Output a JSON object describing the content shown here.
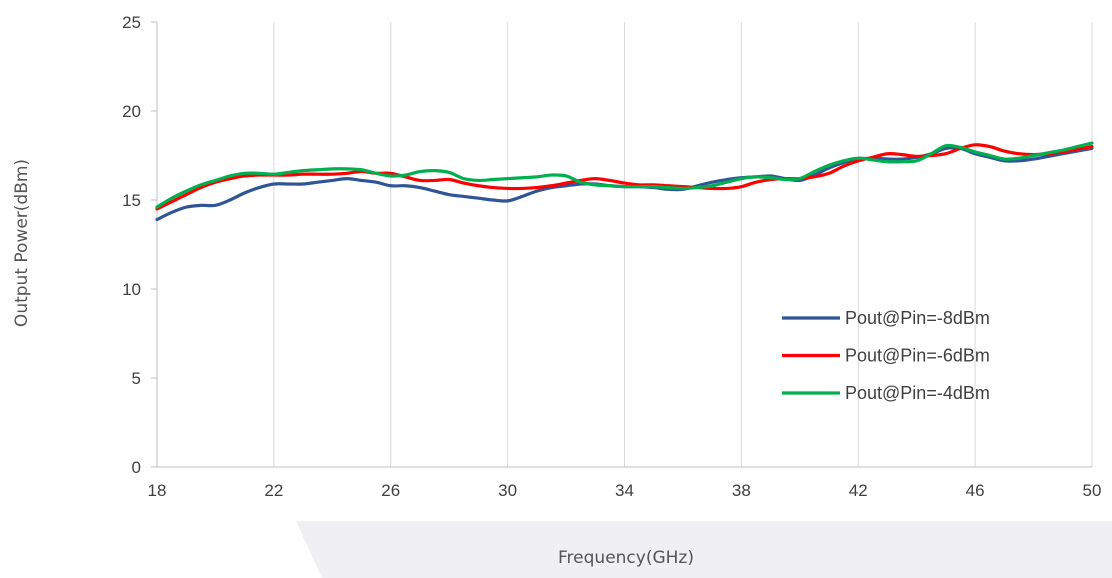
{
  "chart_data": {
    "type": "line",
    "title": "",
    "xlabel": "Frequency(GHz)",
    "ylabel": "Output Power(dBm)",
    "xlim": [
      18,
      50
    ],
    "ylim": [
      0,
      25
    ],
    "x_ticks": [
      18,
      22,
      26,
      30,
      34,
      38,
      42,
      46,
      50
    ],
    "y_ticks": [
      0,
      5,
      10,
      15,
      20,
      25
    ],
    "grid": "vertical",
    "legend_position": "lower-right",
    "series": [
      {
        "name": "Pout@Pin=-8dBm",
        "color": "#2F5597",
        "x": [
          18,
          18.5,
          19,
          19.5,
          20,
          20.5,
          21,
          21.5,
          22,
          22.5,
          23,
          23.5,
          24,
          24.5,
          25,
          25.5,
          26,
          26.5,
          27,
          27.5,
          28,
          28.5,
          29,
          29.5,
          30,
          30.5,
          31,
          31.5,
          32,
          32.5,
          33,
          33.5,
          34,
          34.5,
          35,
          35.5,
          36,
          36.5,
          37,
          37.5,
          38,
          38.5,
          39,
          39.5,
          40,
          40.5,
          41,
          41.5,
          42,
          42.5,
          43,
          43.5,
          44,
          44.5,
          45,
          45.5,
          46,
          46.5,
          47,
          47.5,
          48,
          48.5,
          49,
          49.5,
          50
        ],
        "y": [
          13.9,
          14.3,
          14.6,
          14.7,
          14.7,
          15.0,
          15.4,
          15.7,
          15.9,
          15.9,
          15.9,
          16.0,
          16.1,
          16.2,
          16.1,
          16.0,
          15.8,
          15.8,
          15.7,
          15.5,
          15.3,
          15.2,
          15.1,
          15.0,
          14.95,
          15.2,
          15.5,
          15.7,
          15.8,
          15.9,
          15.9,
          15.8,
          15.75,
          15.75,
          15.7,
          15.6,
          15.6,
          15.8,
          16.0,
          16.15,
          16.25,
          16.3,
          16.35,
          16.2,
          16.1,
          16.4,
          16.8,
          17.1,
          17.3,
          17.35,
          17.3,
          17.3,
          17.4,
          17.6,
          17.9,
          17.9,
          17.6,
          17.4,
          17.2,
          17.2,
          17.3,
          17.45,
          17.6,
          17.75,
          17.9
        ]
      },
      {
        "name": "Pout@Pin=-6dBm",
        "color": "#FF0000",
        "x": [
          18,
          18.5,
          19,
          19.5,
          20,
          20.5,
          21,
          21.5,
          22,
          22.5,
          23,
          23.5,
          24,
          24.5,
          25,
          25.5,
          26,
          26.5,
          27,
          27.5,
          28,
          28.5,
          29,
          29.5,
          30,
          30.5,
          31,
          31.5,
          32,
          32.5,
          33,
          33.5,
          34,
          34.5,
          35,
          35.5,
          36,
          36.5,
          37,
          37.5,
          38,
          38.5,
          39,
          39.5,
          40,
          40.5,
          41,
          41.5,
          42,
          42.5,
          43,
          43.5,
          44,
          44.5,
          45,
          45.5,
          46,
          46.5,
          47,
          47.5,
          48,
          48.5,
          49,
          49.5,
          50
        ],
        "y": [
          14.5,
          14.9,
          15.3,
          15.7,
          16.0,
          16.2,
          16.35,
          16.4,
          16.4,
          16.4,
          16.45,
          16.45,
          16.45,
          16.5,
          16.6,
          16.5,
          16.5,
          16.3,
          16.1,
          16.1,
          16.15,
          15.95,
          15.8,
          15.7,
          15.65,
          15.65,
          15.7,
          15.8,
          15.95,
          16.1,
          16.2,
          16.1,
          15.95,
          15.85,
          15.85,
          15.8,
          15.75,
          15.7,
          15.65,
          15.65,
          15.75,
          16.0,
          16.15,
          16.2,
          16.2,
          16.3,
          16.5,
          16.9,
          17.2,
          17.4,
          17.6,
          17.55,
          17.45,
          17.5,
          17.6,
          17.9,
          18.1,
          18.0,
          17.75,
          17.6,
          17.55,
          17.6,
          17.7,
          17.85,
          18.0
        ]
      },
      {
        "name": "Pout@Pin=-4dBm",
        "color": "#00B050",
        "x": [
          18,
          18.5,
          19,
          19.5,
          20,
          20.5,
          21,
          21.5,
          22,
          22.5,
          23,
          23.5,
          24,
          24.5,
          25,
          25.5,
          26,
          26.5,
          27,
          27.5,
          28,
          28.5,
          29,
          29.5,
          30,
          30.5,
          31,
          31.5,
          32,
          32.5,
          33,
          33.5,
          34,
          34.5,
          35,
          35.5,
          36,
          36.5,
          37,
          37.5,
          38,
          38.5,
          39,
          39.5,
          40,
          40.5,
          41,
          41.5,
          42,
          42.5,
          43,
          43.5,
          44,
          44.5,
          45,
          45.5,
          46,
          46.5,
          47,
          47.5,
          48,
          48.5,
          49,
          49.5,
          50
        ],
        "y": [
          14.6,
          15.1,
          15.5,
          15.85,
          16.1,
          16.35,
          16.5,
          16.5,
          16.45,
          16.55,
          16.65,
          16.7,
          16.75,
          16.75,
          16.7,
          16.5,
          16.35,
          16.4,
          16.6,
          16.65,
          16.55,
          16.2,
          16.1,
          16.15,
          16.2,
          16.25,
          16.3,
          16.4,
          16.35,
          16.0,
          15.85,
          15.8,
          15.75,
          15.75,
          15.75,
          15.7,
          15.65,
          15.7,
          15.8,
          16.0,
          16.2,
          16.3,
          16.25,
          16.15,
          16.2,
          16.6,
          16.95,
          17.2,
          17.35,
          17.25,
          17.15,
          17.15,
          17.2,
          17.6,
          18.05,
          17.95,
          17.7,
          17.5,
          17.3,
          17.35,
          17.5,
          17.65,
          17.8,
          18.0,
          18.2
        ]
      }
    ]
  }
}
